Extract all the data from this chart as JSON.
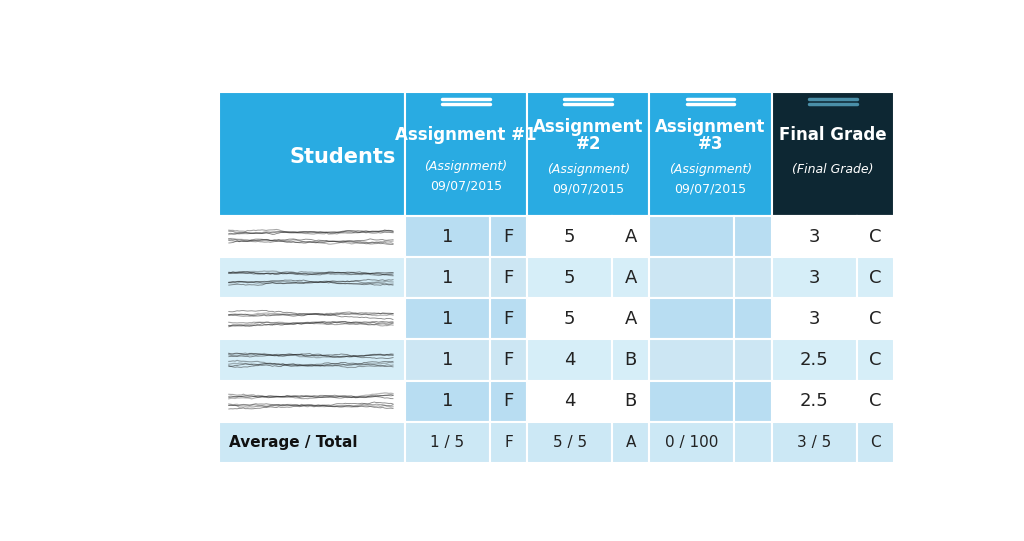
{
  "background_color": "#ffffff",
  "header_bg_blue": "#29abe2",
  "header_bg_dark": "#0d2733",
  "row_bg_white": "#ffffff",
  "row_bg_light": "#d6eef8",
  "col_a1_bg": "#b8ddf2",
  "col_a3_bg": "#b8ddf2",
  "avg_row_bg": "#cce8f5",
  "border_color": "#ffffff",
  "rows": [
    [
      "1",
      "F",
      "5",
      "A",
      "",
      "",
      "3",
      "C"
    ],
    [
      "1",
      "F",
      "5",
      "A",
      "",
      "",
      "3",
      "C"
    ],
    [
      "1",
      "F",
      "5",
      "A",
      "",
      "",
      "3",
      "C"
    ],
    [
      "1",
      "F",
      "4",
      "B",
      "",
      "",
      "2.5",
      "C"
    ],
    [
      "1",
      "F",
      "4",
      "B",
      "",
      "",
      "2.5",
      "C"
    ]
  ],
  "avg_row": [
    "1 / 5",
    "F",
    "5 / 5",
    "A",
    "0 / 100",
    "",
    "3 / 5",
    "C"
  ]
}
